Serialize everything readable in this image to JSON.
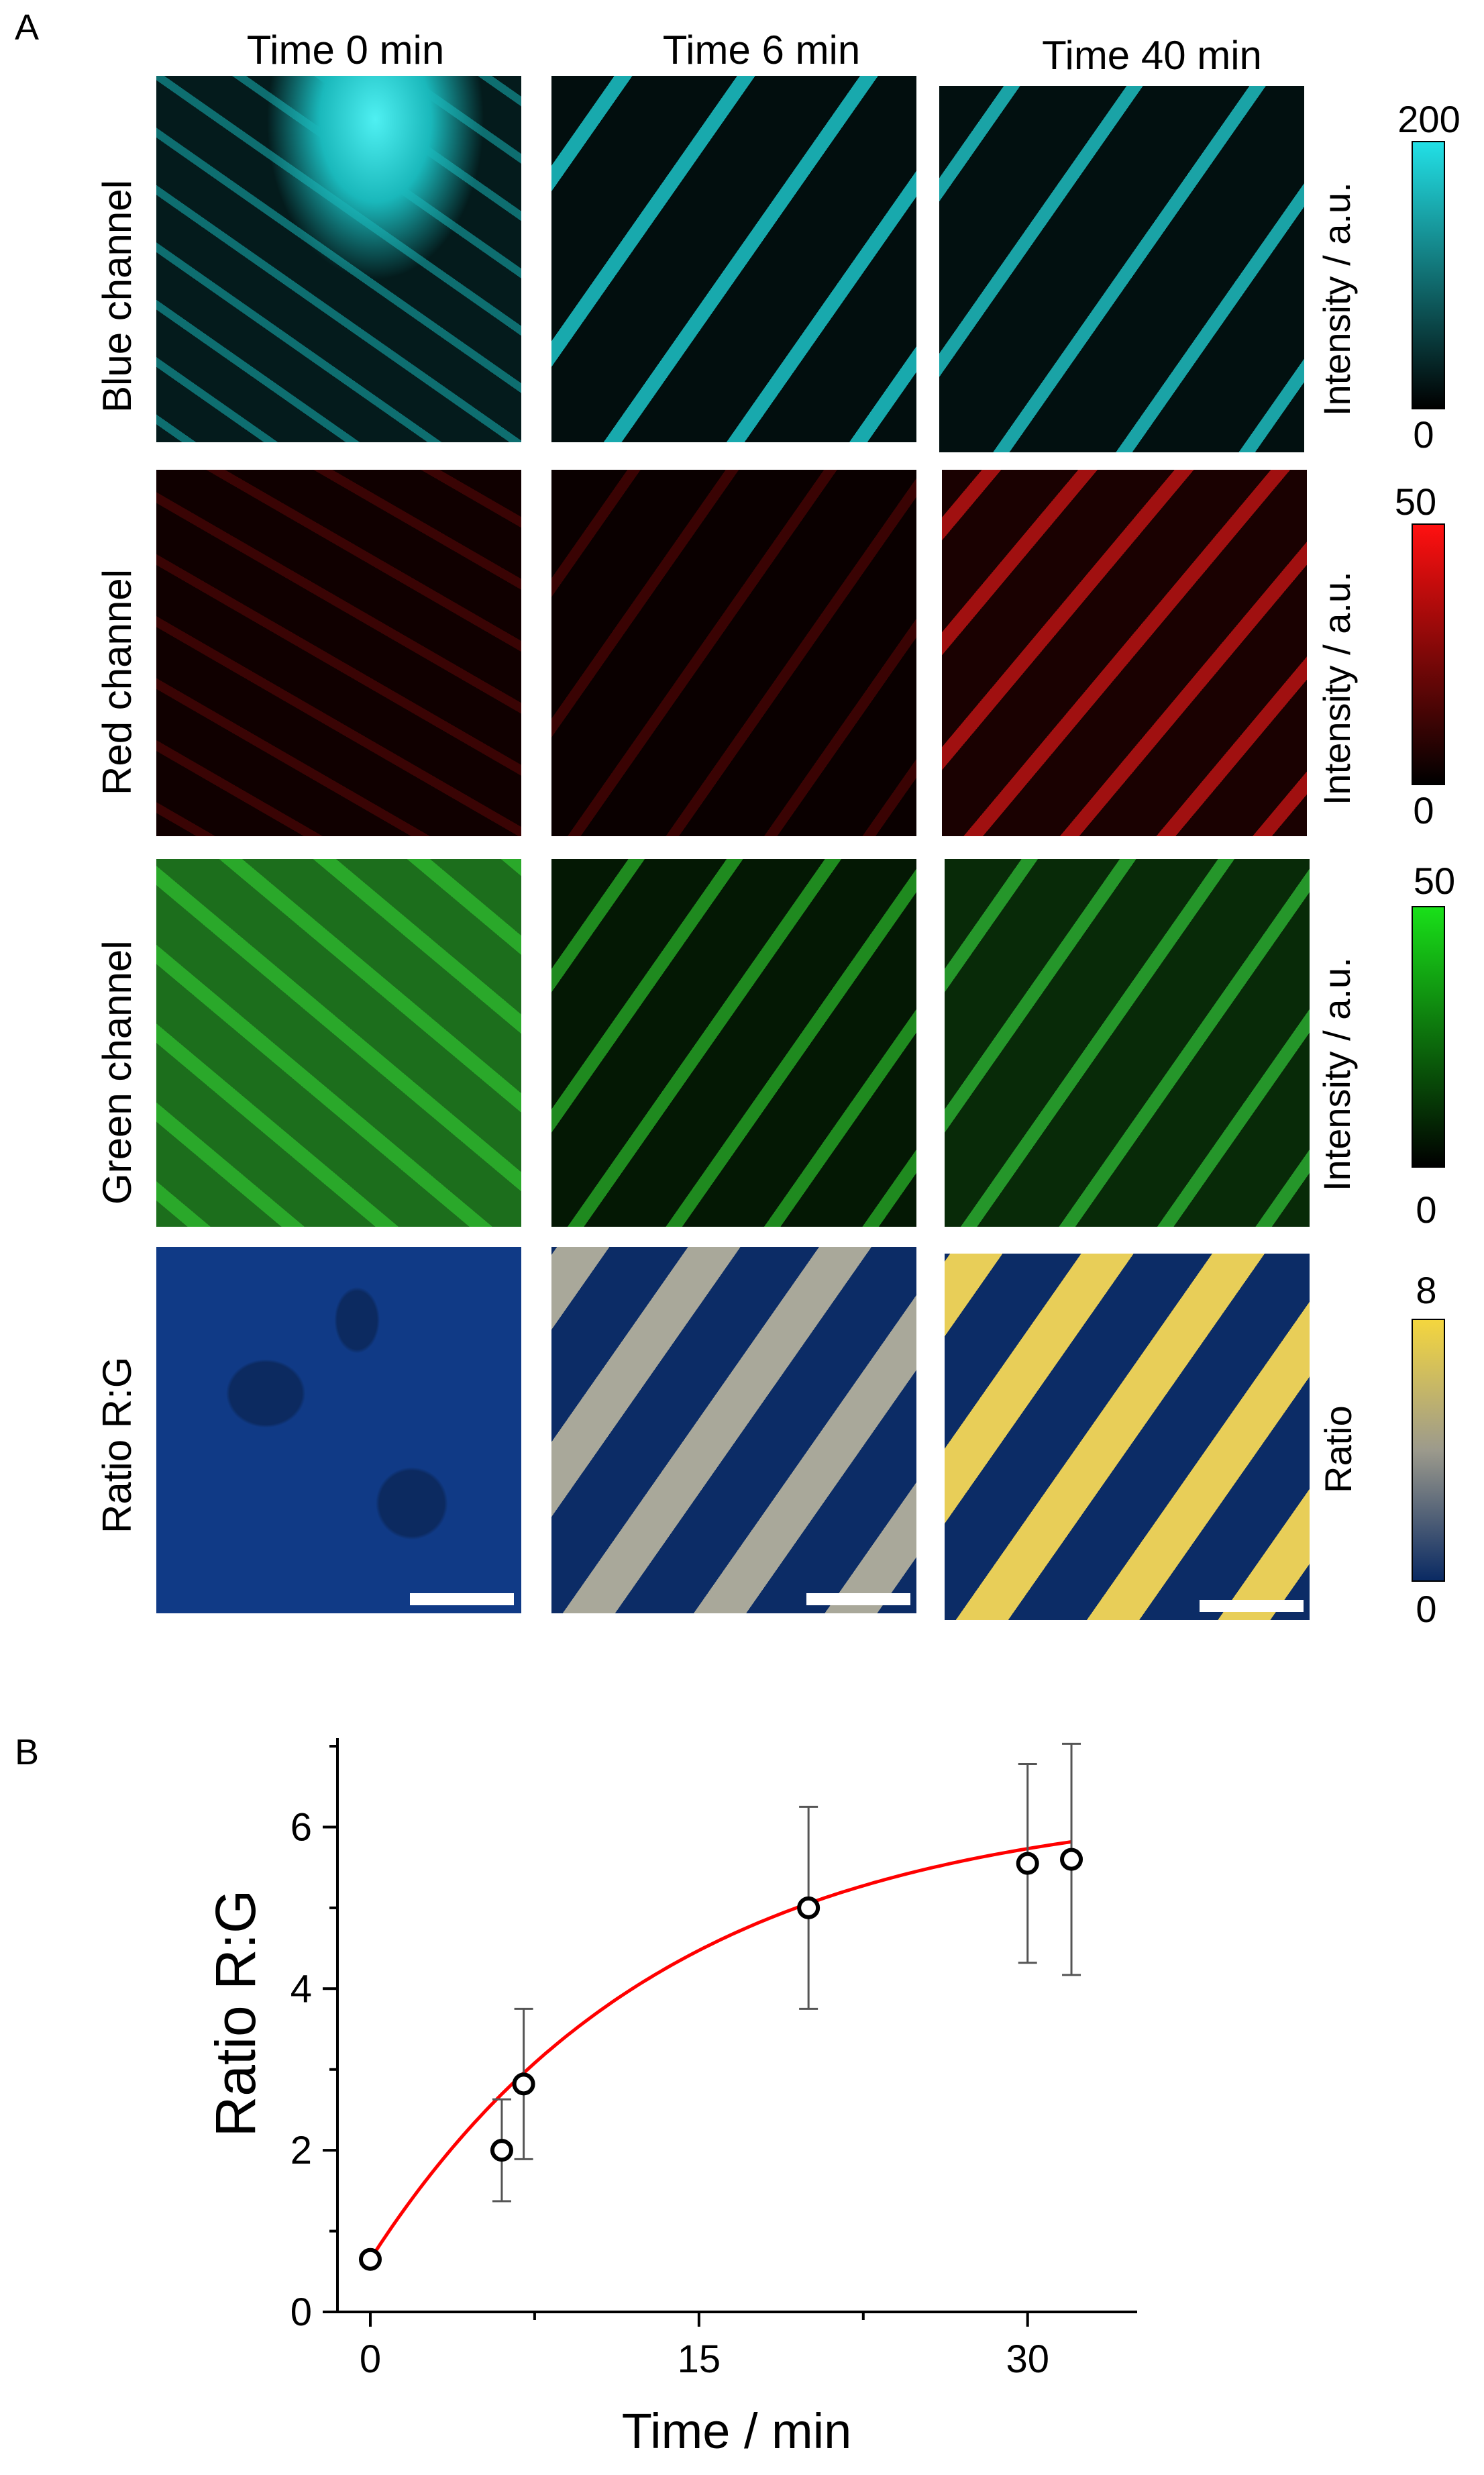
{
  "panel_a": {
    "letter": "A",
    "columns": [
      "Time 0 min",
      "Time 6 min",
      "Time 40 min"
    ],
    "rows": [
      {
        "label": "Blue channel",
        "colorbar_label": "Intensity / a.u.",
        "colorbar_max": "200",
        "colorbar_min": "0",
        "color": "#22e0e6",
        "dark": "#02201f"
      },
      {
        "label": "Red channel",
        "colorbar_label": "Intensity / a.u.",
        "colorbar_max": "50",
        "colorbar_min": "0",
        "color": "#ff1010",
        "dark": "#050000"
      },
      {
        "label": "Green channel",
        "colorbar_label": "Intensity / a.u.",
        "colorbar_max": "50",
        "colorbar_min": "0",
        "color": "#19e019",
        "dark": "#000800"
      },
      {
        "label": "Ratio R:G",
        "colorbar_label": "Ratio",
        "colorbar_max": "8",
        "colorbar_min": "0",
        "color": "#f4d63e",
        "dark": "#0a2a63"
      }
    ]
  },
  "panel_b": {
    "letter": "B"
  },
  "chart_data": {
    "type": "scatter",
    "xlabel": "Time / min",
    "ylabel": "Ratio R:G",
    "xlim": [
      -1.5,
      35
    ],
    "ylim": [
      0,
      7.1
    ],
    "xticks": [
      0,
      15,
      30
    ],
    "yticks": [
      0,
      2,
      4,
      6
    ],
    "points": [
      {
        "x": 0,
        "y": 0.65,
        "err": 0.05
      },
      {
        "x": 6,
        "y": 2.0,
        "err": 0.63
      },
      {
        "x": 7,
        "y": 2.82,
        "err": 0.93
      },
      {
        "x": 20,
        "y": 5.0,
        "err": 1.25
      },
      {
        "x": 30,
        "y": 5.55,
        "err": 1.23
      },
      {
        "x": 32,
        "y": 5.6,
        "err": 1.43
      }
    ],
    "fit": {
      "type": "exponential",
      "y0": 0.65,
      "plateau": 6.35,
      "tau": 13.5,
      "color": "#ff0000"
    }
  }
}
